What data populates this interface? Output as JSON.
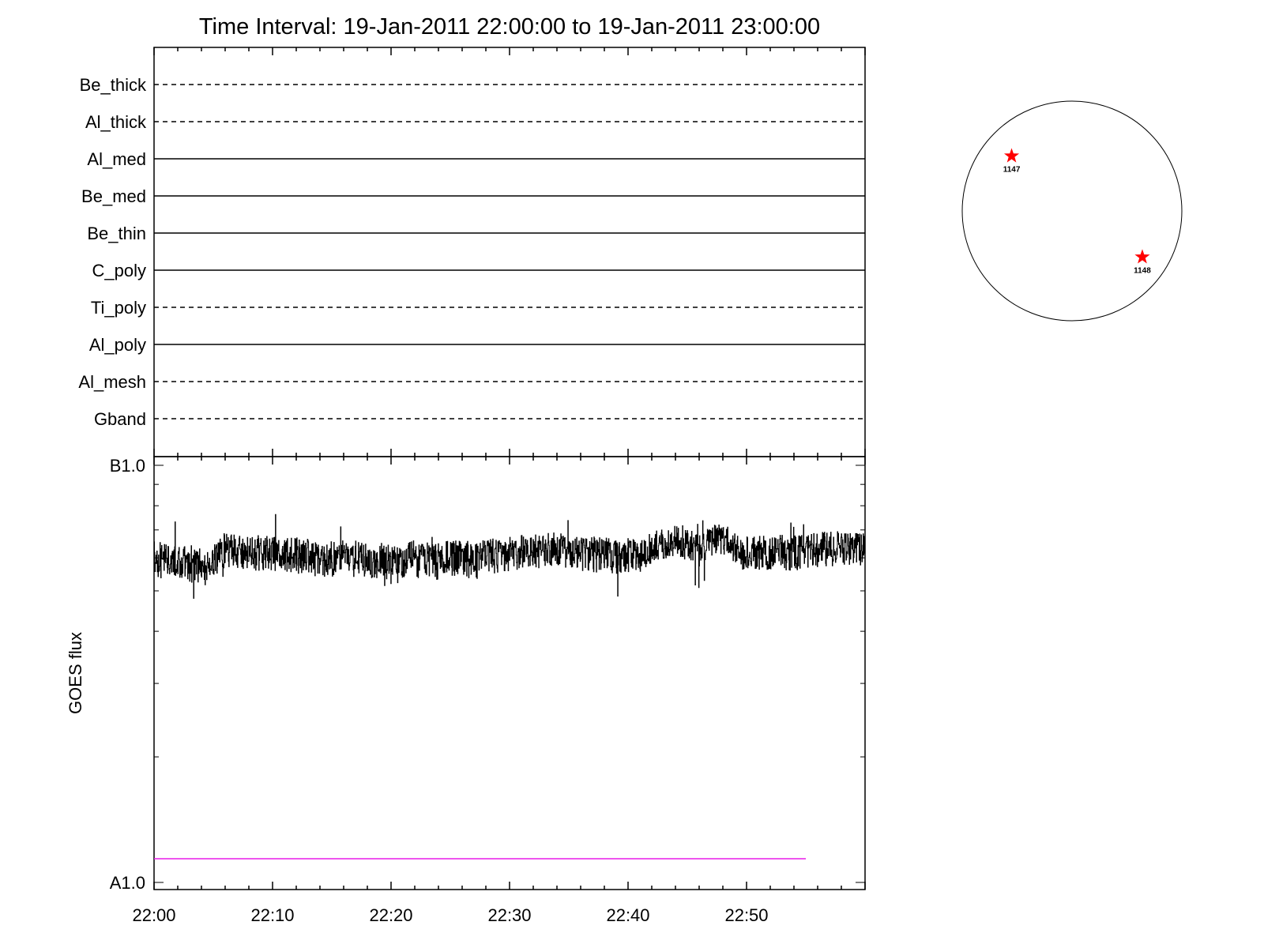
{
  "title": "Time Interval: 19-Jan-2011 22:00:00 to 19-Jan-2011 23:00:00",
  "colors": {
    "axis": "#000000",
    "flux_line": "#000000",
    "threshold_line": "#e81ce8",
    "region_marker": "#ff0000"
  },
  "chart_data": [
    {
      "type": "line",
      "name": "attenuator-states",
      "x_range": [
        "22:00",
        "23:00"
      ],
      "rows": [
        {
          "label": "Be_thick",
          "style": "dashed"
        },
        {
          "label": "Al_thick",
          "style": "dashed"
        },
        {
          "label": "Al_med",
          "style": "solid"
        },
        {
          "label": "Be_med",
          "style": "solid"
        },
        {
          "label": "Be_thin",
          "style": "solid"
        },
        {
          "label": "C_poly",
          "style": "solid"
        },
        {
          "label": "Ti_poly",
          "style": "dashed"
        },
        {
          "label": "Al_poly",
          "style": "solid"
        },
        {
          "label": "Al_mesh",
          "style": "dashed"
        },
        {
          "label": "Gband",
          "style": "dashed"
        }
      ]
    },
    {
      "type": "line",
      "name": "goes-flux",
      "ylabel": "GOES flux",
      "y_tick_labels": [
        "B1.0",
        "A1.0"
      ],
      "ylim_log_wm2": [
        1e-08,
        1e-07
      ],
      "x_ticks": [
        "22:00",
        "22:10",
        "22:20",
        "22:30",
        "22:40",
        "22:50"
      ],
      "x_tick_minutes": [
        0,
        10,
        20,
        30,
        40,
        50
      ],
      "x_range_minutes": [
        0,
        60
      ],
      "series": [
        {
          "style": "noisy",
          "noise_amplitude_wm2": 6e-09,
          "x_minutes": [
            0,
            2,
            4,
            4.5,
            5,
            5.5,
            6,
            8,
            10,
            12,
            14,
            16,
            18,
            20,
            22,
            24,
            26,
            27,
            28,
            30,
            32,
            34,
            36,
            38,
            40,
            41,
            42,
            43,
            44,
            45,
            46,
            47,
            48,
            49,
            50,
            52,
            54,
            56,
            58,
            60
          ],
          "flux_wm2": [
            6e-08,
            5.9e-08,
            5.8e-08,
            5.65e-08,
            5.9e-08,
            6.2e-08,
            6.3e-08,
            6.2e-08,
            6.2e-08,
            6.1e-08,
            6e-08,
            6e-08,
            5.95e-08,
            5.9e-08,
            5.95e-08,
            5.9e-08,
            6.1e-08,
            5.85e-08,
            6.1e-08,
            6.15e-08,
            6.25e-08,
            6.3e-08,
            6.2e-08,
            6.1e-08,
            6.1e-08,
            6e-08,
            6.35e-08,
            6.5e-08,
            6.6e-08,
            6.55e-08,
            6.15e-08,
            6.55e-08,
            6.75e-08,
            6.3e-08,
            6.2e-08,
            6.2e-08,
            6.2e-08,
            6.3e-08,
            6.35e-08,
            6.3e-08
          ]
        },
        {
          "style": "threshold",
          "x_minutes": [
            0,
            55
          ],
          "flux_wm2": [
            1.14e-08,
            1.14e-08
          ]
        }
      ]
    },
    {
      "type": "scatter",
      "name": "solar-disk",
      "regions": [
        {
          "label": "1147",
          "x_frac_of_radius": -0.55,
          "y_frac_of_radius": 0.5
        },
        {
          "label": "1148",
          "x_frac_of_radius": 0.64,
          "y_frac_of_radius": -0.42
        }
      ]
    }
  ]
}
